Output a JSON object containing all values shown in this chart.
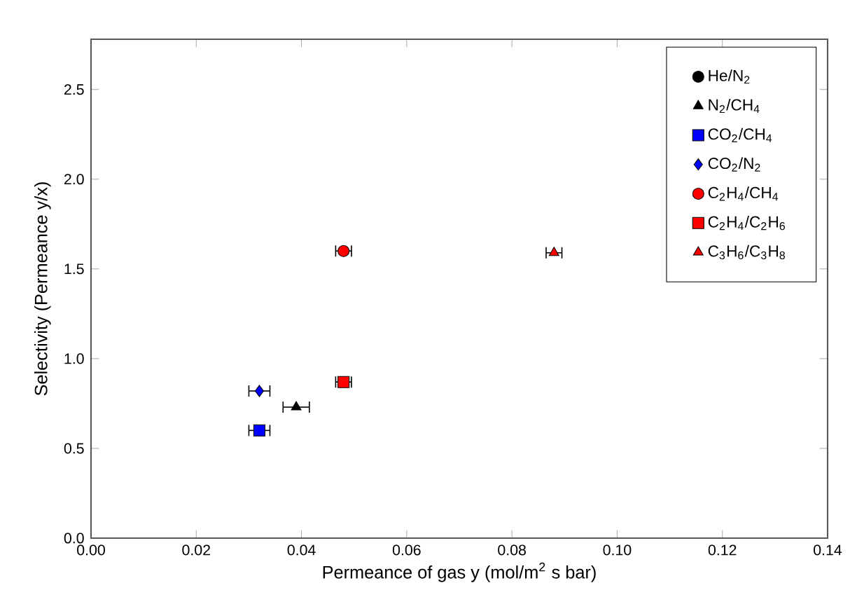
{
  "chart_data": {
    "type": "scatter",
    "xlabel": "Permeance of gas y (mol/m$^{2}$ s bar)",
    "ylabel": "Selectivity (Permeance y/x)",
    "xlim": [
      0,
      0.14
    ],
    "ylim": [
      0,
      2.78
    ],
    "xticks": [
      {
        "value": 0,
        "label": "0.00"
      },
      {
        "value": 0.02,
        "label": "0.02"
      },
      {
        "value": 0.04,
        "label": "0.04"
      },
      {
        "value": 0.06,
        "label": "0.06"
      },
      {
        "value": 0.08,
        "label": "0.08"
      },
      {
        "value": 0.1,
        "label": "0.10"
      },
      {
        "value": 0.12,
        "label": "0.12"
      },
      {
        "value": 0.14,
        "label": "0.14"
      }
    ],
    "yticks": [
      {
        "value": 0,
        "label": "0.0"
      },
      {
        "value": 0.5,
        "label": "0.5"
      },
      {
        "value": 1,
        "label": "1.0"
      },
      {
        "value": 1.5,
        "label": "1.5"
      },
      {
        "value": 2,
        "label": "2.0"
      },
      {
        "value": 2.5,
        "label": "2.5"
      }
    ],
    "legend": "top right",
    "series": [
      {
        "name": "He/N$_{2}$",
        "color": "#000000",
        "marker": "circle",
        "x": [
          null
        ],
        "values": [
          null
        ],
        "xerrors": [
          null
        ]
      },
      {
        "name": "N$_{2}$/CH$_{4}$",
        "color": "#000000",
        "marker": "triangle",
        "x": [
          0.039
        ],
        "values": [
          0.73
        ],
        "xerrors": [
          0.0025
        ]
      },
      {
        "name": "CO$_{2}$/CH$_{4}$",
        "color": "#0000ff",
        "marker": "square",
        "x": [
          0.032
        ],
        "values": [
          0.6
        ],
        "xerrors": [
          0.002
        ]
      },
      {
        "name": "CO$_{2}$/N$_{2}$",
        "color": "#0000ff",
        "marker": "diamond",
        "x": [
          0.032
        ],
        "values": [
          0.82
        ],
        "xerrors": [
          0.002
        ]
      },
      {
        "name": "C$_{2}$H$_{4}$/CH$_{4}$",
        "color": "#ff0000",
        "marker": "circle",
        "x": [
          0.048
        ],
        "values": [
          1.6
        ],
        "xerrors": [
          0.0015
        ]
      },
      {
        "name": "C$_{2}$H$_{4}$/C$_{2}$H$_{6}$",
        "color": "#ff0000",
        "marker": "square",
        "x": [
          0.048
        ],
        "values": [
          0.87
        ],
        "xerrors": [
          0.0015
        ]
      },
      {
        "name": "C$_{3}$H$_{6}$/C$_{3}$H$_{8}$",
        "color": "#ff0000",
        "marker": "triangle",
        "x": [
          0.088
        ],
        "values": [
          1.59
        ],
        "xerrors": [
          0.0015
        ]
      }
    ]
  }
}
